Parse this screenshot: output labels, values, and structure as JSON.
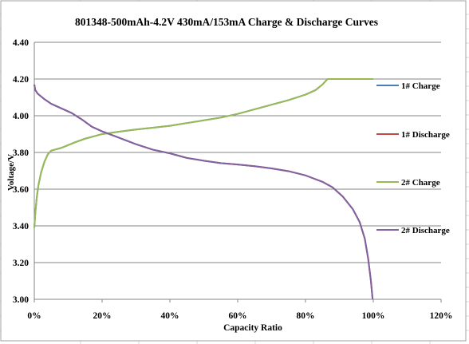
{
  "colors": {
    "background": "#ffffff",
    "sheet_grid": "#d9d9d9",
    "plot_grid": "#868686",
    "axis": "#868686",
    "charge_1": "#4a7ebb",
    "discharge_1": "#be4b48",
    "charge_2": "#98b954",
    "discharge_2": "#7e62a1"
  },
  "chart_data": {
    "type": "line",
    "title": "801348-500mAh-4.2V  430mA/153mA  Charge & Discharge  Curves",
    "xlabel": "Capacity Ratio",
    "ylabel": "Voltage/V",
    "xlim": [
      0,
      120
    ],
    "ylim": [
      3.0,
      4.4
    ],
    "x_ticks": [
      0,
      20,
      40,
      60,
      80,
      100,
      120
    ],
    "x_tick_labels": [
      "0%",
      "20%",
      "40%",
      "60%",
      "80%",
      "100%",
      "120%"
    ],
    "y_ticks": [
      3.0,
      3.2,
      3.4,
      3.6,
      3.8,
      4.0,
      4.2,
      4.4
    ],
    "y_tick_labels": [
      "3.00",
      "3.20",
      "3.40",
      "3.60",
      "3.80",
      "4.00",
      "4.20",
      "4.40"
    ],
    "grid": "horizontal",
    "legend_position": "right",
    "series": [
      {
        "name": "1# Charge",
        "color": "#4a7ebb",
        "points": [
          [
            0,
            3.39
          ],
          [
            0.3,
            3.47
          ],
          [
            0.7,
            3.55
          ],
          [
            1.2,
            3.62
          ],
          [
            2,
            3.69
          ],
          [
            3,
            3.75
          ],
          [
            4,
            3.79
          ],
          [
            5,
            3.81
          ],
          [
            6,
            3.815
          ],
          [
            8,
            3.825
          ],
          [
            10,
            3.84
          ],
          [
            12,
            3.855
          ],
          [
            15,
            3.875
          ],
          [
            18,
            3.89
          ],
          [
            20,
            3.9
          ],
          [
            25,
            3.913
          ],
          [
            30,
            3.925
          ],
          [
            35,
            3.935
          ],
          [
            40,
            3.945
          ],
          [
            45,
            3.96
          ],
          [
            50,
            3.975
          ],
          [
            55,
            3.99
          ],
          [
            60,
            4.01
          ],
          [
            65,
            4.035
          ],
          [
            70,
            4.06
          ],
          [
            75,
            4.085
          ],
          [
            80,
            4.115
          ],
          [
            83,
            4.14
          ],
          [
            85,
            4.17
          ],
          [
            86.5,
            4.2
          ],
          [
            100,
            4.2
          ]
        ]
      },
      {
        "name": "1# Discharge",
        "color": "#be4b48",
        "points": [
          [
            0,
            4.17
          ],
          [
            0.3,
            4.14
          ],
          [
            1,
            4.12
          ],
          [
            3,
            4.09
          ],
          [
            5,
            4.065
          ],
          [
            8,
            4.04
          ],
          [
            11,
            4.015
          ],
          [
            14,
            3.98
          ],
          [
            17,
            3.94
          ],
          [
            20,
            3.915
          ],
          [
            25,
            3.88
          ],
          [
            30,
            3.845
          ],
          [
            35,
            3.815
          ],
          [
            40,
            3.795
          ],
          [
            45,
            3.77
          ],
          [
            50,
            3.755
          ],
          [
            55,
            3.742
          ],
          [
            60,
            3.734
          ],
          [
            65,
            3.725
          ],
          [
            70,
            3.713
          ],
          [
            75,
            3.698
          ],
          [
            80,
            3.675
          ],
          [
            85,
            3.64
          ],
          [
            88,
            3.61
          ],
          [
            91,
            3.56
          ],
          [
            94,
            3.49
          ],
          [
            96,
            3.42
          ],
          [
            97.5,
            3.33
          ],
          [
            98.5,
            3.22
          ],
          [
            99.3,
            3.1
          ],
          [
            99.8,
            3.0
          ]
        ]
      },
      {
        "name": "2# Charge",
        "color": "#98b954",
        "points": [
          [
            0,
            3.39
          ],
          [
            0.3,
            3.47
          ],
          [
            0.7,
            3.55
          ],
          [
            1.2,
            3.62
          ],
          [
            2,
            3.69
          ],
          [
            3,
            3.75
          ],
          [
            4,
            3.79
          ],
          [
            5,
            3.81
          ],
          [
            6,
            3.815
          ],
          [
            8,
            3.825
          ],
          [
            10,
            3.84
          ],
          [
            12,
            3.855
          ],
          [
            15,
            3.875
          ],
          [
            18,
            3.89
          ],
          [
            20,
            3.9
          ],
          [
            25,
            3.913
          ],
          [
            30,
            3.925
          ],
          [
            35,
            3.935
          ],
          [
            40,
            3.945
          ],
          [
            45,
            3.96
          ],
          [
            50,
            3.975
          ],
          [
            55,
            3.99
          ],
          [
            60,
            4.01
          ],
          [
            65,
            4.035
          ],
          [
            70,
            4.06
          ],
          [
            75,
            4.085
          ],
          [
            80,
            4.115
          ],
          [
            83,
            4.14
          ],
          [
            85,
            4.17
          ],
          [
            86.5,
            4.2
          ],
          [
            100,
            4.2
          ]
        ]
      },
      {
        "name": "2# Discharge",
        "color": "#7e62a1",
        "points": [
          [
            0,
            4.17
          ],
          [
            0.3,
            4.14
          ],
          [
            1,
            4.12
          ],
          [
            3,
            4.09
          ],
          [
            5,
            4.065
          ],
          [
            8,
            4.04
          ],
          [
            11,
            4.015
          ],
          [
            14,
            3.98
          ],
          [
            17,
            3.94
          ],
          [
            20,
            3.915
          ],
          [
            25,
            3.88
          ],
          [
            30,
            3.845
          ],
          [
            35,
            3.815
          ],
          [
            40,
            3.795
          ],
          [
            45,
            3.77
          ],
          [
            50,
            3.755
          ],
          [
            55,
            3.742
          ],
          [
            60,
            3.734
          ],
          [
            65,
            3.725
          ],
          [
            70,
            3.713
          ],
          [
            75,
            3.698
          ],
          [
            80,
            3.675
          ],
          [
            85,
            3.64
          ],
          [
            88,
            3.61
          ],
          [
            91,
            3.56
          ],
          [
            94,
            3.49
          ],
          [
            96,
            3.42
          ],
          [
            97.5,
            3.33
          ],
          [
            98.5,
            3.22
          ],
          [
            99.3,
            3.1
          ],
          [
            99.8,
            3.0
          ]
        ]
      }
    ]
  }
}
